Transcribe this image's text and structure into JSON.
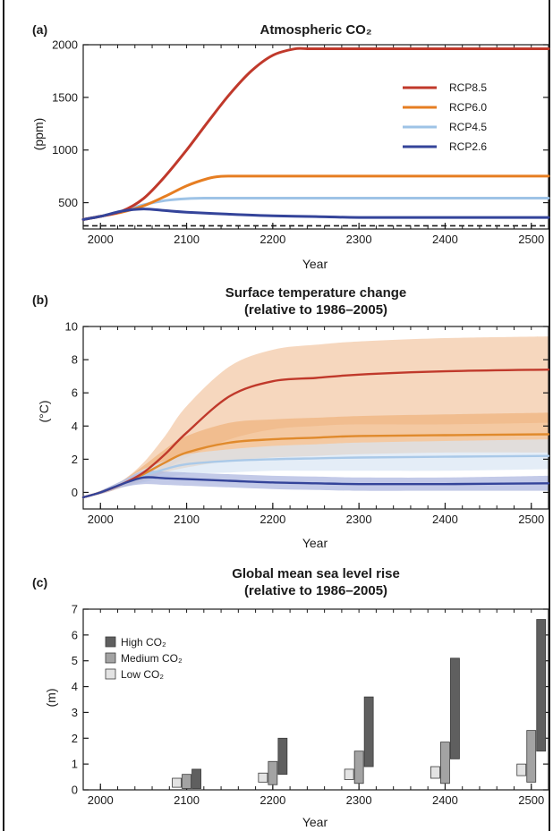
{
  "chart_data": [
    {
      "type": "line",
      "panel": "(a)",
      "title": "Atmospheric CO₂",
      "xlabel": "Year",
      "ylabel": "(ppm)",
      "xlim": [
        1980,
        2520
      ],
      "ylim": [
        250,
        2000
      ],
      "xticks": [
        2000,
        2100,
        2200,
        2300,
        2400,
        2500
      ],
      "yticks": [
        500,
        1000,
        1500,
        2000
      ],
      "legend_position": "top-right",
      "reference_line": 280,
      "series": [
        {
          "name": "RCP8.5",
          "color": "#c0392b",
          "x": [
            1980,
            2000,
            2025,
            2050,
            2075,
            2100,
            2125,
            2150,
            2175,
            2200,
            2225,
            2240,
            2260,
            2300,
            2400,
            2520
          ],
          "y": [
            340,
            370,
            420,
            540,
            750,
            1000,
            1270,
            1530,
            1750,
            1900,
            1960,
            1962,
            1962,
            1962,
            1962,
            1962
          ]
        },
        {
          "name": "RCP6.0",
          "color": "#e67e22",
          "x": [
            1980,
            2000,
            2025,
            2050,
            2075,
            2100,
            2125,
            2140,
            2160,
            2200,
            2300,
            2400,
            2520
          ],
          "y": [
            340,
            370,
            410,
            470,
            560,
            660,
            730,
            750,
            752,
            752,
            752,
            752,
            752
          ]
        },
        {
          "name": "RCP4.5",
          "color": "#9ec3e6",
          "x": [
            1980,
            2000,
            2025,
            2050,
            2075,
            2100,
            2125,
            2150,
            2200,
            2300,
            2400,
            2520
          ],
          "y": [
            340,
            370,
            420,
            480,
            520,
            538,
            543,
            543,
            543,
            543,
            543,
            543
          ]
        },
        {
          "name": "RCP2.6",
          "color": "#34449a",
          "x": [
            1980,
            2000,
            2025,
            2050,
            2075,
            2100,
            2150,
            2200,
            2250,
            2300,
            2400,
            2520
          ],
          "y": [
            340,
            370,
            420,
            440,
            425,
            410,
            390,
            375,
            368,
            360,
            360,
            360
          ]
        }
      ]
    },
    {
      "type": "line",
      "panel": "(b)",
      "title": "Surface temperature change",
      "subtitle": "(relative to 1986–2005)",
      "xlabel": "Year",
      "ylabel": "(°C)",
      "xlim": [
        1980,
        2520
      ],
      "ylim": [
        -1,
        10
      ],
      "xticks": [
        2000,
        2100,
        2200,
        2300,
        2400,
        2500
      ],
      "yticks": [
        0,
        2,
        4,
        6,
        8,
        10
      ],
      "series": [
        {
          "name": "RCP8.5",
          "color": "#c0392b",
          "band_color": "#f2c6a2",
          "x": [
            1980,
            2000,
            2025,
            2050,
            2075,
            2100,
            2150,
            2200,
            2250,
            2300,
            2400,
            2520
          ],
          "y": [
            -0.3,
            0,
            0.5,
            1.2,
            2.3,
            3.6,
            5.8,
            6.7,
            6.9,
            7.1,
            7.3,
            7.4
          ],
          "low": [
            -0.3,
            -0.1,
            0.3,
            0.8,
            1.4,
            2.1,
            3.2,
            3.8,
            4.0,
            4.1,
            4.1,
            4.2
          ],
          "high": [
            -0.3,
            0.1,
            0.7,
            1.8,
            3.4,
            5.2,
            7.6,
            8.6,
            8.9,
            9.1,
            9.3,
            9.4
          ]
        },
        {
          "name": "RCP6.0",
          "color": "#e08a2c",
          "band_color": "#f0b27a",
          "x": [
            1980,
            2000,
            2025,
            2050,
            2075,
            2100,
            2150,
            2200,
            2250,
            2300,
            2400,
            2520
          ],
          "y": [
            -0.3,
            0,
            0.5,
            1.1,
            1.8,
            2.4,
            3.0,
            3.2,
            3.3,
            3.4,
            3.45,
            3.5
          ],
          "low": [
            -0.3,
            -0.1,
            0.3,
            0.7,
            1.2,
            1.5,
            1.9,
            2.1,
            2.2,
            2.3,
            2.4,
            2.4
          ],
          "high": [
            -0.3,
            0.1,
            0.7,
            1.6,
            2.6,
            3.4,
            4.2,
            4.4,
            4.5,
            4.6,
            4.7,
            4.8
          ]
        },
        {
          "name": "RCP4.5",
          "color": "#aac9e8",
          "band_color": "#d8e6f4",
          "x": [
            1980,
            2000,
            2025,
            2050,
            2075,
            2100,
            2150,
            2200,
            2250,
            2300,
            2400,
            2520
          ],
          "y": [
            -0.3,
            0,
            0.5,
            1.0,
            1.4,
            1.7,
            1.9,
            2.0,
            2.05,
            2.1,
            2.15,
            2.2
          ],
          "low": [
            -0.3,
            -0.1,
            0.3,
            0.6,
            0.9,
            1.1,
            1.2,
            1.3,
            1.3,
            1.3,
            1.3,
            1.4
          ],
          "high": [
            -0.3,
            0.1,
            0.7,
            1.4,
            1.9,
            2.3,
            2.6,
            2.8,
            2.9,
            3.0,
            3.1,
            3.2
          ]
        },
        {
          "name": "RCP2.6",
          "color": "#34449a",
          "band_color": "#a9b3de",
          "x": [
            1980,
            2000,
            2025,
            2050,
            2075,
            2100,
            2150,
            2200,
            2250,
            2300,
            2400,
            2520
          ],
          "y": [
            -0.3,
            0,
            0.5,
            0.9,
            0.85,
            0.8,
            0.7,
            0.6,
            0.55,
            0.5,
            0.5,
            0.55
          ],
          "low": [
            -0.3,
            -0.1,
            0.3,
            0.5,
            0.45,
            0.4,
            0.3,
            0.2,
            0.15,
            0.1,
            0.1,
            0.1
          ],
          "high": [
            -0.3,
            0.1,
            0.7,
            1.3,
            1.25,
            1.2,
            1.1,
            1.0,
            0.95,
            0.9,
            0.9,
            1.0
          ]
        }
      ]
    },
    {
      "type": "bar",
      "panel": "(c)",
      "title": "Global mean sea level rise",
      "subtitle": "(relative to 1986–2005)",
      "xlabel": "Year",
      "ylabel": "(m)",
      "xlim": [
        1980,
        2520
      ],
      "ylim": [
        0,
        7
      ],
      "xticks": [
        2000,
        2100,
        2200,
        2300,
        2400,
        2500
      ],
      "yticks": [
        0,
        1,
        2,
        3,
        4,
        5,
        6,
        7
      ],
      "legend_position": "top-left",
      "categories": [
        2100,
        2200,
        2300,
        2400,
        2500
      ],
      "series": [
        {
          "name": "High CO₂",
          "color": "#5f5f5f",
          "ranges": [
            [
              0.05,
              0.8
            ],
            [
              0.6,
              2.0
            ],
            [
              0.9,
              3.6
            ],
            [
              1.2,
              5.1
            ],
            [
              1.5,
              6.6
            ]
          ]
        },
        {
          "name": "Medium CO₂",
          "color": "#a3a3a3",
          "ranges": [
            [
              0.05,
              0.6
            ],
            [
              0.2,
              1.1
            ],
            [
              0.25,
              1.5
            ],
            [
              0.25,
              1.85
            ],
            [
              0.3,
              2.3
            ]
          ]
        },
        {
          "name": "Low CO₂",
          "color": "#e3e3e3",
          "ranges": [
            [
              0.1,
              0.45
            ],
            [
              0.3,
              0.65
            ],
            [
              0.4,
              0.8
            ],
            [
              0.45,
              0.9
            ],
            [
              0.55,
              1.0
            ]
          ]
        }
      ]
    }
  ]
}
